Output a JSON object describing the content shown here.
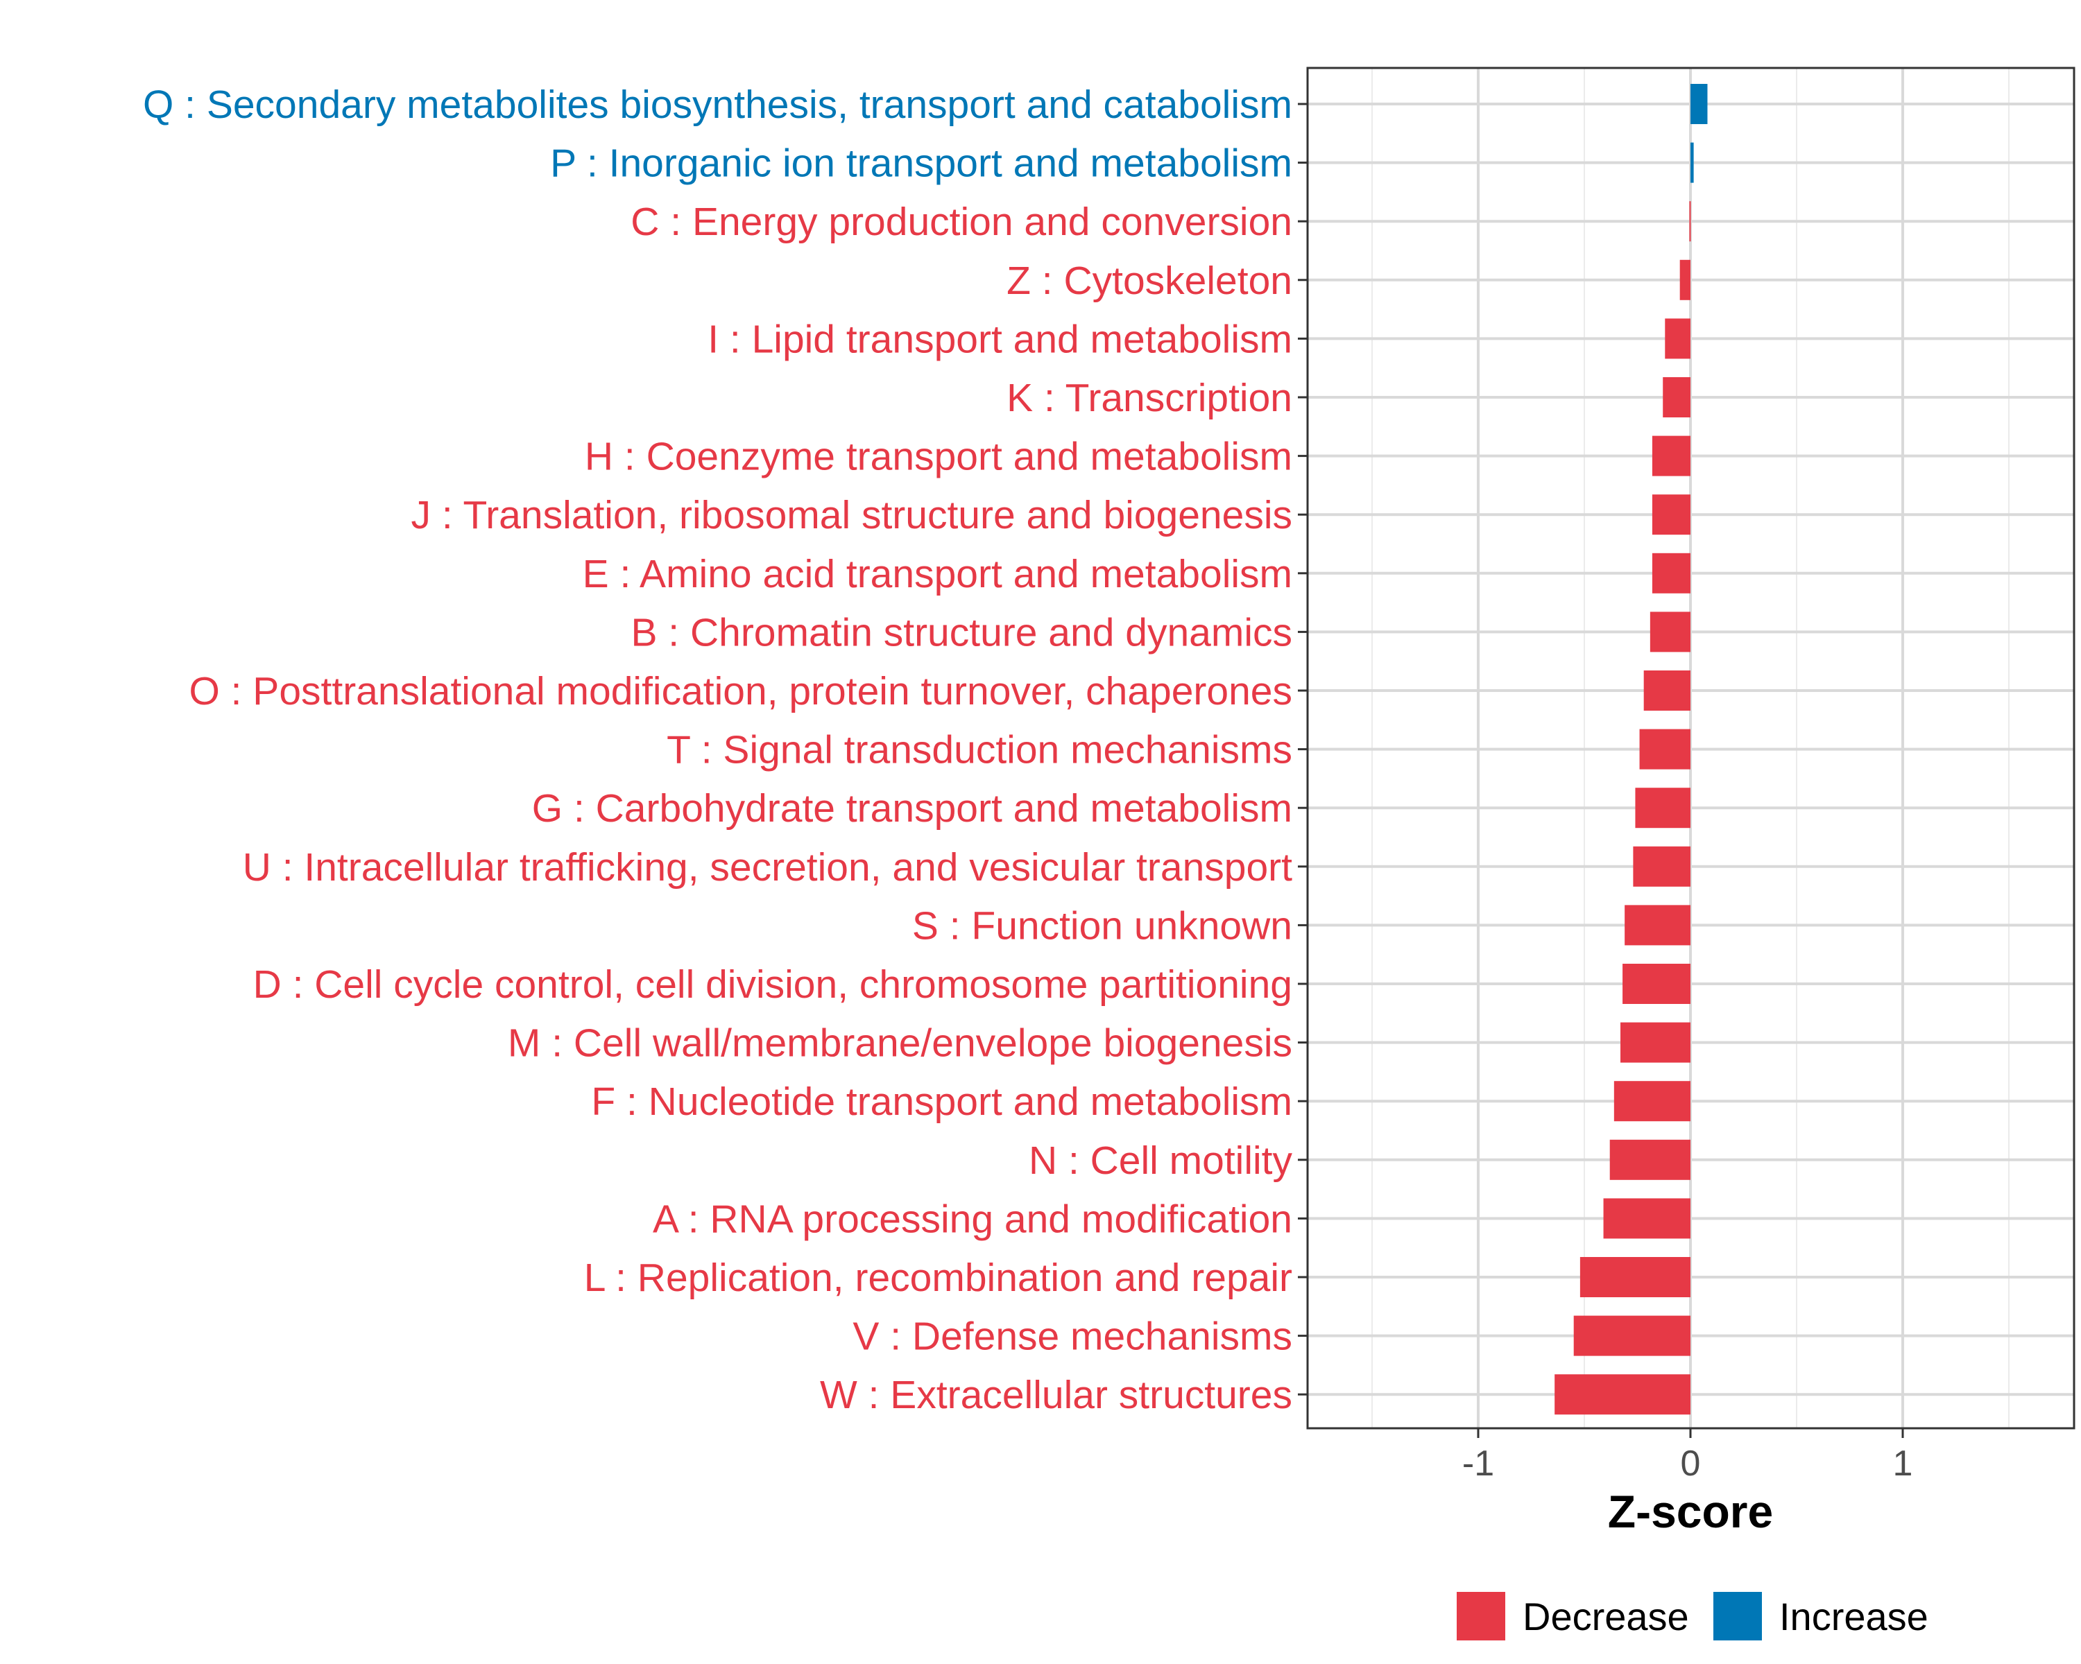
{
  "chart_data": {
    "type": "bar",
    "orientation": "horizontal",
    "title": "",
    "xlabel": "Z-score",
    "ylabel": "",
    "xlim": [
      -1.8,
      1.8
    ],
    "x_ticks": [
      -1,
      0,
      1
    ],
    "x_tick_labels": [
      "-1",
      "0",
      "1"
    ],
    "grid": true,
    "legend_position": "bottom",
    "legend": [
      {
        "key": "decrease",
        "label": "Decrease",
        "color": "#E63946"
      },
      {
        "key": "increase",
        "label": "Increase",
        "color": "#0077B6"
      }
    ],
    "categories": [
      {
        "label": "Q : Secondary metabolites biosynthesis, transport and catabolism",
        "value": 0.08,
        "group": "increase"
      },
      {
        "label": "P : Inorganic ion transport and metabolism",
        "value": 0.015,
        "group": "increase"
      },
      {
        "label": "C : Energy production and conversion",
        "value": -0.005,
        "group": "decrease"
      },
      {
        "label": "Z : Cytoskeleton",
        "value": -0.05,
        "group": "decrease"
      },
      {
        "label": "I : Lipid transport and metabolism",
        "value": -0.12,
        "group": "decrease"
      },
      {
        "label": "K : Transcription",
        "value": -0.13,
        "group": "decrease"
      },
      {
        "label": "H : Coenzyme transport and metabolism",
        "value": -0.18,
        "group": "decrease"
      },
      {
        "label": "J : Translation, ribosomal structure and biogenesis",
        "value": -0.18,
        "group": "decrease"
      },
      {
        "label": "E : Amino acid transport and metabolism",
        "value": -0.18,
        "group": "decrease"
      },
      {
        "label": "B : Chromatin structure and dynamics",
        "value": -0.19,
        "group": "decrease"
      },
      {
        "label": "O : Posttranslational modification, protein turnover, chaperones",
        "value": -0.22,
        "group": "decrease"
      },
      {
        "label": "T : Signal transduction mechanisms",
        "value": -0.24,
        "group": "decrease"
      },
      {
        "label": "G : Carbohydrate transport and metabolism",
        "value": -0.26,
        "group": "decrease"
      },
      {
        "label": "U : Intracellular trafficking, secretion, and vesicular transport",
        "value": -0.27,
        "group": "decrease"
      },
      {
        "label": "S : Function unknown",
        "value": -0.31,
        "group": "decrease"
      },
      {
        "label": "D : Cell cycle control, cell division, chromosome partitioning",
        "value": -0.32,
        "group": "decrease"
      },
      {
        "label": "M : Cell wall/membrane/envelope biogenesis",
        "value": -0.33,
        "group": "decrease"
      },
      {
        "label": "F : Nucleotide transport and metabolism",
        "value": -0.36,
        "group": "decrease"
      },
      {
        "label": "N : Cell motility",
        "value": -0.38,
        "group": "decrease"
      },
      {
        "label": "A : RNA processing and modification",
        "value": -0.41,
        "group": "decrease"
      },
      {
        "label": "L : Replication, recombination and repair",
        "value": -0.52,
        "group": "decrease"
      },
      {
        "label": "V : Defense mechanisms",
        "value": -0.55,
        "group": "decrease"
      },
      {
        "label": "W : Extracellular structures",
        "value": -0.64,
        "group": "decrease"
      }
    ]
  }
}
